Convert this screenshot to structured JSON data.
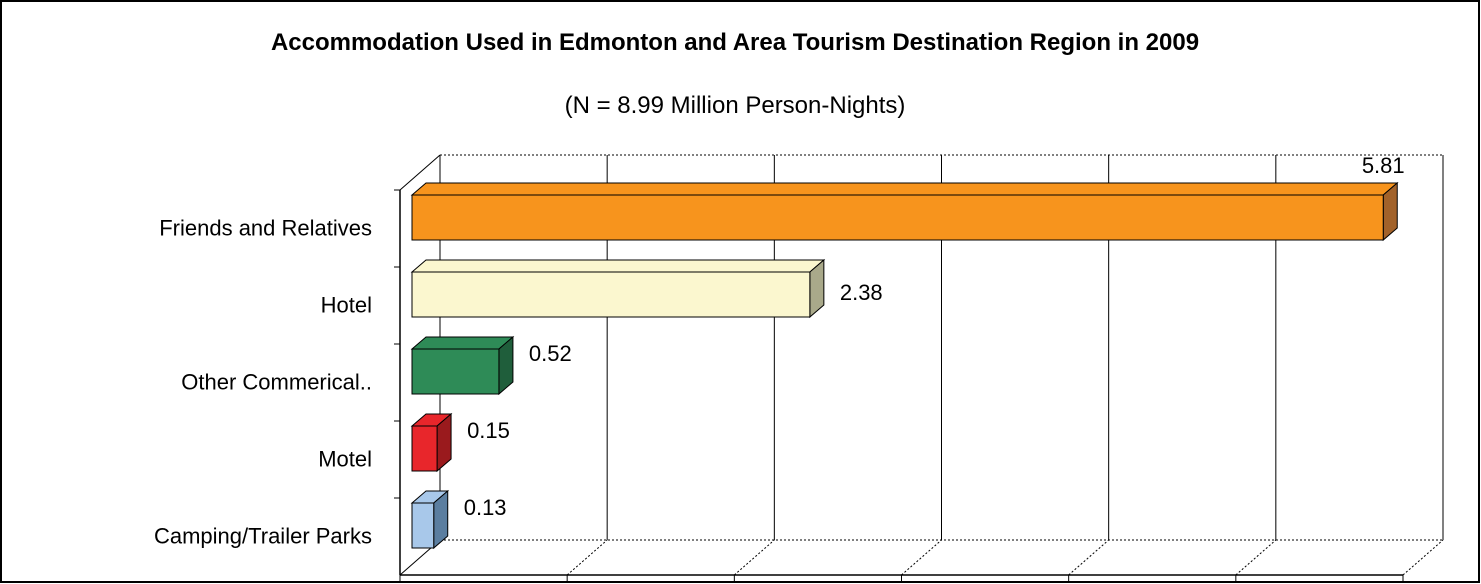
{
  "chart_data": {
    "type": "bar3d_horizontal",
    "title": "Accommodation Used in Edmonton and Area Tourism Destination Region in 2009",
    "subtitle": "(N = 8.99 Million Person-Nights)",
    "categories": [
      "Friends and Relatives",
      "Hotel",
      "Other Commerical..",
      "Motel",
      "Camping/Trailer Parks"
    ],
    "values": [
      5.81,
      2.38,
      0.52,
      0.15,
      0.13
    ],
    "colors": [
      "#f7941d",
      "#fbf7cf",
      "#2e8b57",
      "#e8262b",
      "#a8c8ea"
    ],
    "side_colors": [
      "#a2622a",
      "#a9a98a",
      "#1f5e3b",
      "#9a1a1d",
      "#5b7ea0"
    ],
    "xlim": [
      0,
      6
    ],
    "xticks": [
      0,
      1,
      2,
      3,
      4,
      5,
      6
    ],
    "grid": true
  }
}
